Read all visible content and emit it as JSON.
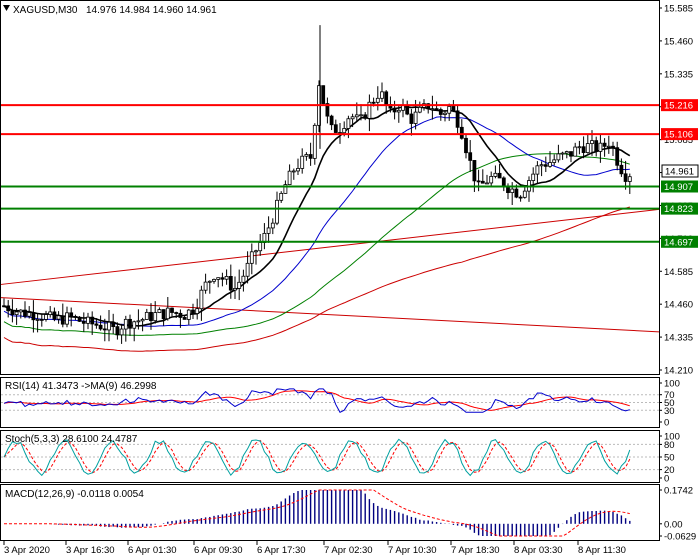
{
  "header": {
    "symbol_info": "XAGUSD,M30",
    "ohlc": "14.976 14.984 14.960 14.961"
  },
  "price_axis": {
    "ticks": [
      "15.585",
      "15.460",
      "15.335",
      "15.210",
      "15.085",
      "14.960",
      "14.835",
      "14.710",
      "14.585",
      "14.460",
      "14.335",
      "14.210"
    ],
    "current_price": "14.961"
  },
  "levels": [
    {
      "label": "15.216",
      "color": "#ff0000"
    },
    {
      "label": "15.106",
      "color": "#ff0000"
    },
    {
      "label": "14.907",
      "color": "#008000"
    },
    {
      "label": "14.823",
      "color": "#008000"
    },
    {
      "label": "14.697",
      "color": "#008000"
    }
  ],
  "time_axis": [
    "3 Apr 2020",
    "3 Apr 16:30",
    "6 Apr 01:30",
    "6 Apr 09:30",
    "6 Apr 17:30",
    "7 Apr 02:30",
    "7 Apr 10:30",
    "7 Apr 18:30",
    "8 Apr 03:30",
    "8 Apr 11:30"
  ],
  "rsi": {
    "label": "RSI(14) 41.3473  ->MA(9) 46.2998",
    "ticks": [
      "100",
      "70",
      "50",
      "30",
      "0"
    ]
  },
  "stoch": {
    "label": "Stoch(5,3,3) 28.6100 24.4787",
    "ticks": [
      "100",
      "80",
      "50",
      "20",
      "0"
    ]
  },
  "macd": {
    "label": "MACD(12,26,9) -0.0118 0.0054",
    "ticks": [
      "0.1742",
      "0.00",
      "-0.0629"
    ]
  },
  "colors": {
    "resistance": "#ff0000",
    "support": "#008000",
    "ma_fast": "#000000",
    "ma_blue": "#0000cd",
    "ma_green": "#008000",
    "ma_red": "#cc0000",
    "rsi_line": "#0000cd",
    "signal": "#ff0000",
    "stoch_main": "#00a0a0",
    "macd_hist": "#000080"
  }
}
